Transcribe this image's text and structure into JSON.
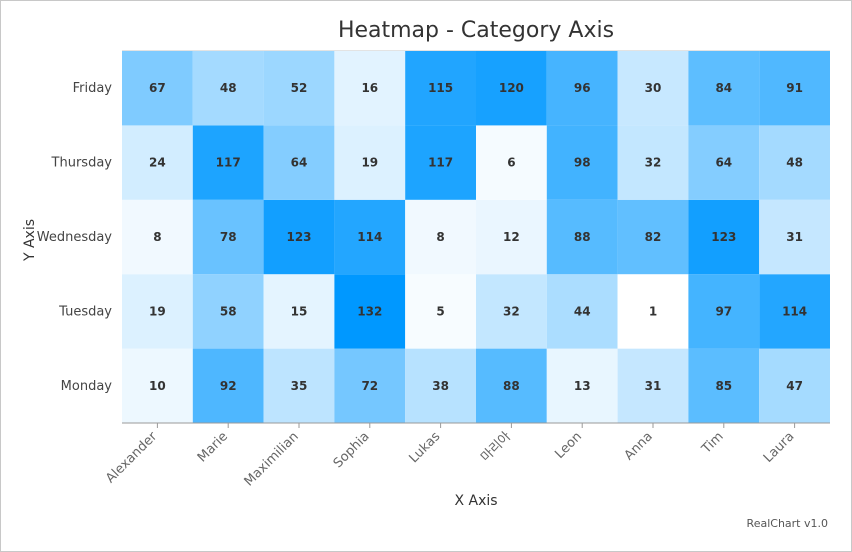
{
  "chart_data": {
    "type": "heatmap",
    "title": "Heatmap - Category Axis",
    "xlabel": "X Axis",
    "ylabel": "Y Axis",
    "x_categories": [
      "Alexander",
      "Marie",
      "Maximilian",
      "Sophia",
      "Lukas",
      "마리아",
      "Leon",
      "Anna",
      "Tim",
      "Laura"
    ],
    "y_categories": [
      "Monday",
      "Tuesday",
      "Wednesday",
      "Thursday",
      "Friday"
    ],
    "values": [
      [
        10,
        92,
        35,
        72,
        38,
        88,
        13,
        31,
        85,
        47
      ],
      [
        19,
        58,
        15,
        132,
        5,
        32,
        44,
        1,
        97,
        114
      ],
      [
        8,
        78,
        123,
        114,
        8,
        12,
        88,
        82,
        123,
        31
      ],
      [
        24,
        117,
        64,
        19,
        117,
        6,
        98,
        32,
        64,
        48
      ],
      [
        67,
        48,
        52,
        16,
        115,
        120,
        96,
        30,
        84,
        91
      ]
    ],
    "color_min": "#ffffff",
    "color_max": "#0098ff",
    "value_range": [
      1,
      132
    ],
    "grid": false,
    "legend": "none"
  },
  "credit": "RealChart v1.0"
}
